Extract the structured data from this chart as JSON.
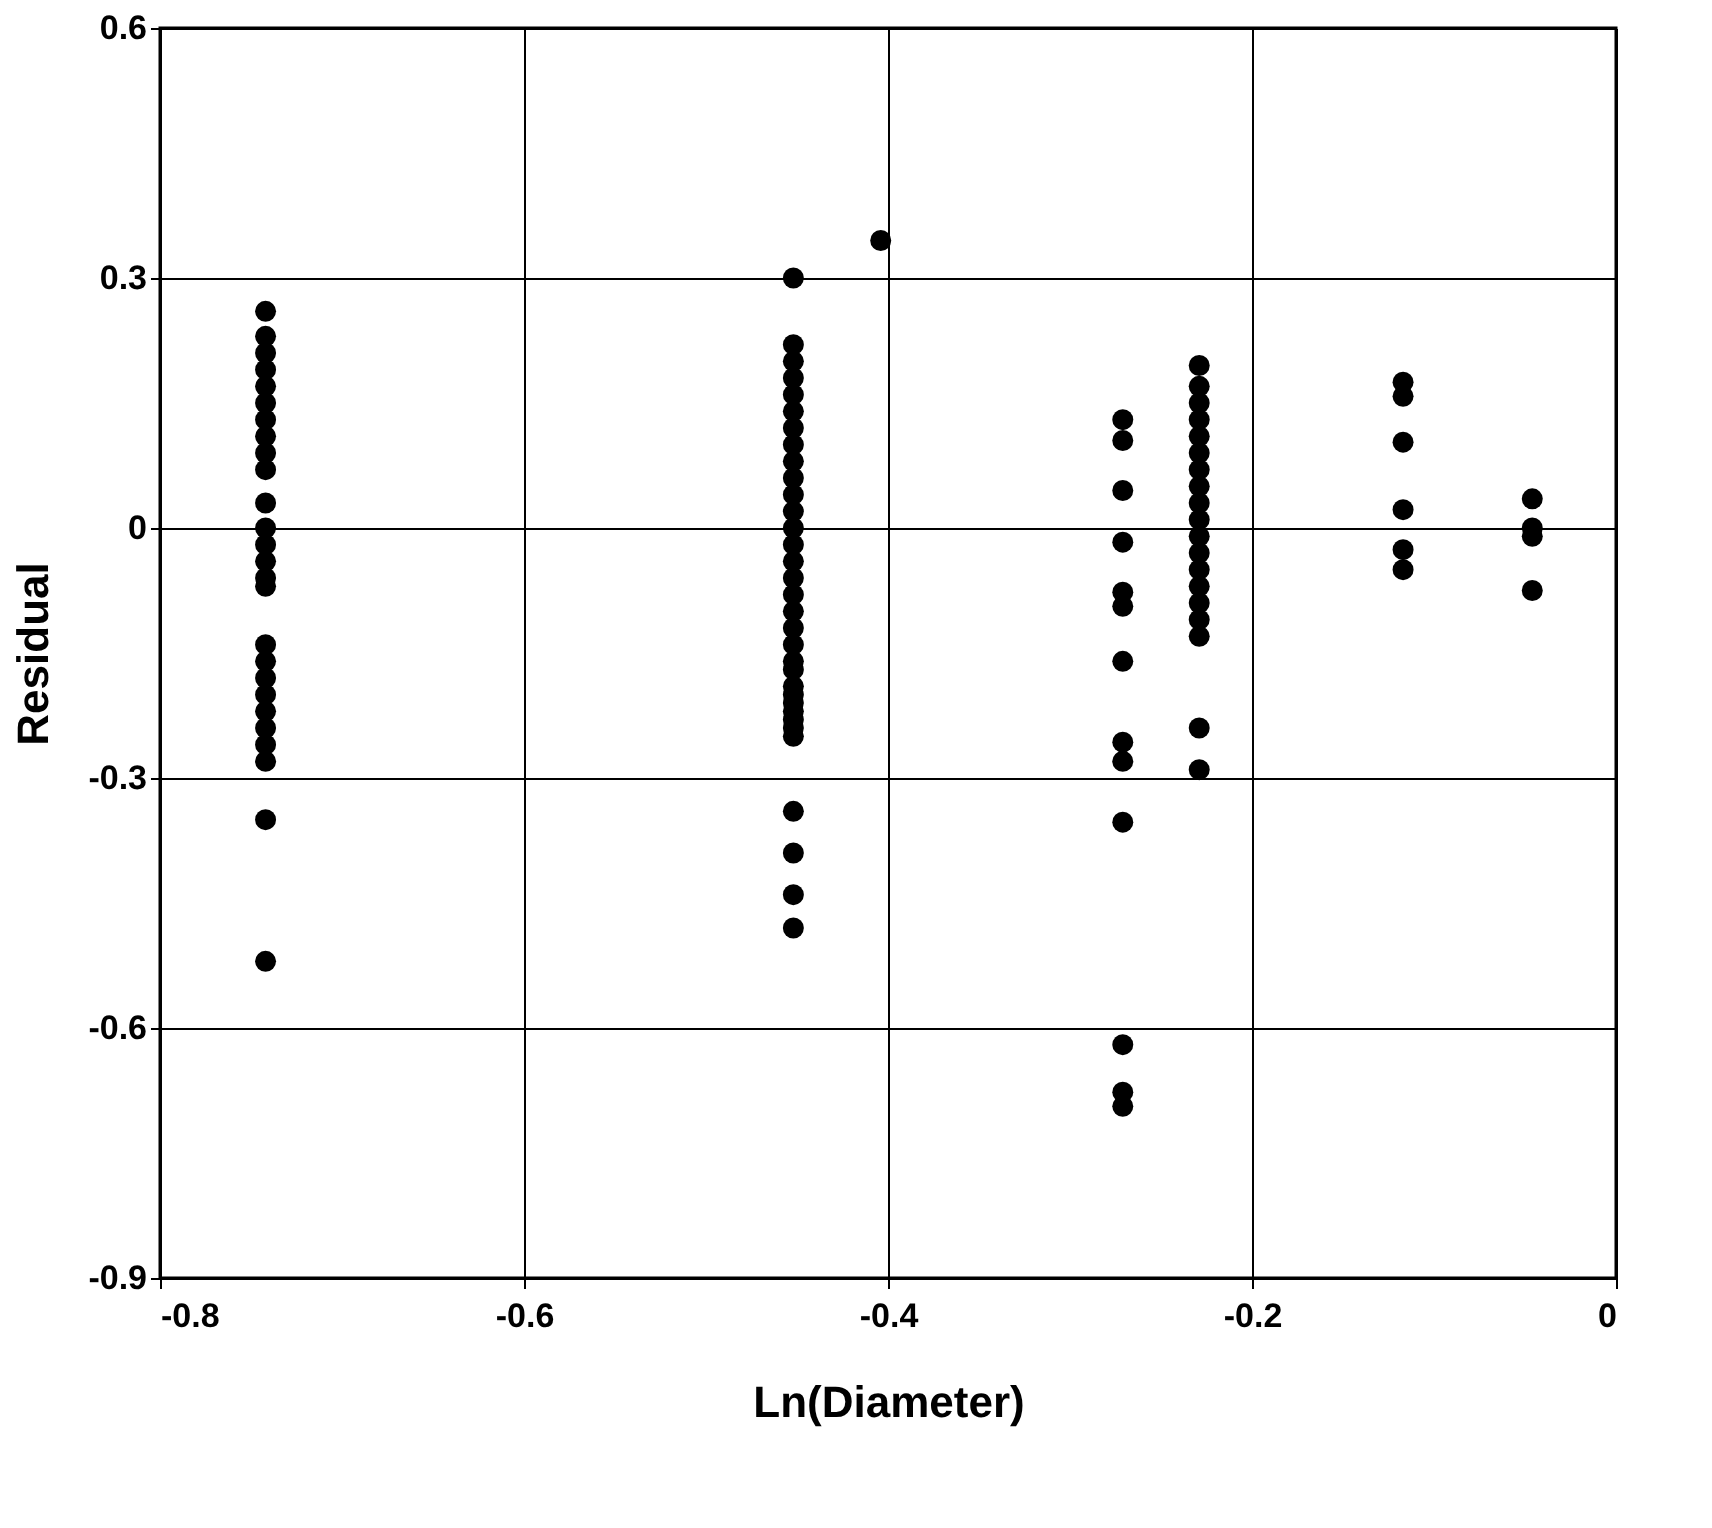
{
  "chart_data": {
    "type": "scatter",
    "xlabel": "Ln(Diameter)",
    "ylabel": "Residual",
    "marker": "circle",
    "grid": true,
    "xlim": [
      -0.8,
      0
    ],
    "xticks": [
      -0.8,
      -0.6,
      -0.4,
      -0.2,
      0
    ],
    "ylim": [
      -0.9,
      0.6
    ],
    "yticks": [
      -0.9,
      -0.6,
      -0.3,
      0,
      0.3,
      0.6
    ],
    "series": [
      {
        "color": "#000000",
        "x": [
          -0.742,
          -0.742,
          -0.742,
          -0.742,
          -0.742,
          -0.742,
          -0.742,
          -0.742,
          -0.742,
          -0.742,
          -0.742,
          -0.742,
          -0.742,
          -0.742,
          -0.742,
          -0.742,
          -0.742,
          -0.742,
          -0.742,
          -0.742,
          -0.742,
          -0.742,
          -0.742,
          -0.742,
          -0.742,
          -0.742,
          -0.452,
          -0.452,
          -0.452,
          -0.452,
          -0.452,
          -0.452,
          -0.452,
          -0.452,
          -0.452,
          -0.452,
          -0.452,
          -0.452,
          -0.452,
          -0.452,
          -0.452,
          -0.452,
          -0.452,
          -0.452,
          -0.452,
          -0.452,
          -0.452,
          -0.452,
          -0.452,
          -0.452,
          -0.452,
          -0.452,
          -0.452,
          -0.452,
          -0.452,
          -0.452,
          -0.452,
          -0.452,
          -0.452,
          -0.404,
          -0.271,
          -0.271,
          -0.271,
          -0.271,
          -0.271,
          -0.271,
          -0.271,
          -0.271,
          -0.271,
          -0.271,
          -0.271,
          -0.271,
          -0.271,
          -0.229,
          -0.229,
          -0.229,
          -0.229,
          -0.229,
          -0.229,
          -0.229,
          -0.229,
          -0.229,
          -0.229,
          -0.229,
          -0.229,
          -0.229,
          -0.229,
          -0.229,
          -0.229,
          -0.229,
          -0.229,
          -0.229,
          -0.117,
          -0.117,
          -0.117,
          -0.117,
          -0.117,
          -0.117,
          -0.046,
          -0.046,
          -0.046,
          -0.046
        ],
        "values": [
          0.26,
          0.23,
          0.21,
          0.19,
          0.17,
          0.15,
          0.13,
          0.11,
          0.09,
          0.07,
          0.03,
          0.0,
          -0.02,
          -0.04,
          -0.06,
          -0.07,
          -0.14,
          -0.16,
          -0.18,
          -0.2,
          -0.22,
          -0.24,
          -0.26,
          -0.28,
          -0.35,
          -0.52,
          0.3,
          0.22,
          0.2,
          0.18,
          0.16,
          0.14,
          0.12,
          0.1,
          0.08,
          0.06,
          0.04,
          0.02,
          0.0,
          -0.02,
          -0.04,
          -0.06,
          -0.08,
          -0.1,
          -0.12,
          -0.14,
          -0.16,
          -0.17,
          -0.2,
          -0.22,
          -0.25,
          -0.34,
          -0.39,
          -0.44,
          -0.48,
          -0.19,
          -0.21,
          -0.23,
          -0.24,
          0.345,
          0.13,
          0.105,
          0.045,
          -0.017,
          -0.077,
          -0.094,
          -0.16,
          -0.257,
          -0.28,
          -0.353,
          -0.62,
          -0.677,
          -0.694,
          0.195,
          0.17,
          0.15,
          0.13,
          0.11,
          0.09,
          0.07,
          0.05,
          0.03,
          0.01,
          -0.01,
          -0.03,
          -0.05,
          -0.07,
          -0.09,
          -0.11,
          -0.13,
          -0.24,
          -0.29,
          0.175,
          0.158,
          0.103,
          0.022,
          -0.026,
          -0.05,
          0.035,
          0.0,
          -0.01,
          -0.075
        ]
      }
    ]
  }
}
